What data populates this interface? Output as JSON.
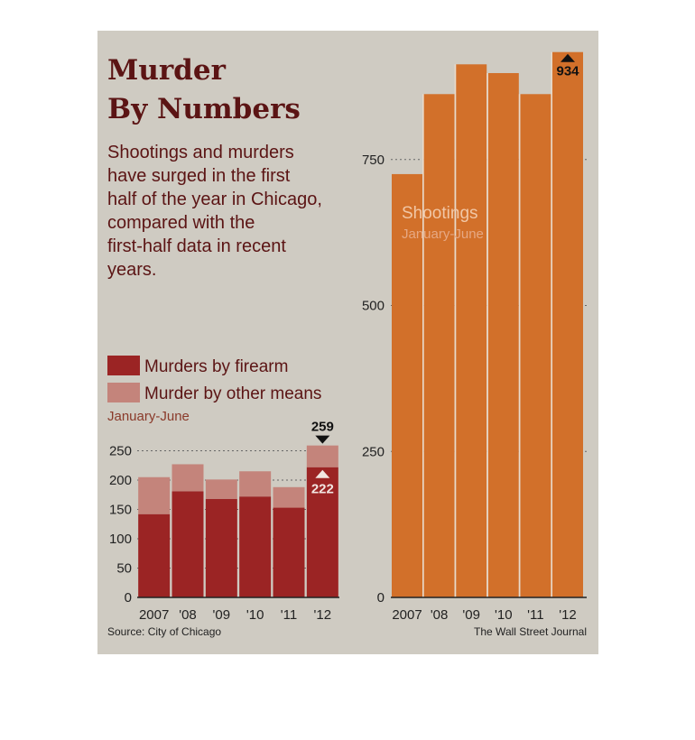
{
  "header": {
    "title_line1": "Murder",
    "title_line2": "By Numbers",
    "description_lines": [
      "Shootings and murders",
      "have surged in the first",
      "half of the year in Chicago,",
      "compared with the",
      "first-half data in recent",
      "years."
    ]
  },
  "colors": {
    "firearm": "#9b2424",
    "other": "#c4847b",
    "shootings": "#d2702a",
    "title": "#5b1414"
  },
  "chart_data": [
    {
      "type": "bar",
      "stacked": true,
      "categories": [
        "2007",
        "'08",
        "'09",
        "'10",
        "'11",
        "'12"
      ],
      "series": [
        {
          "name": "Murders by firearm",
          "values": [
            142,
            181,
            168,
            172,
            153,
            222
          ]
        },
        {
          "name": "Murder by other means",
          "values": [
            63,
            46,
            33,
            43,
            35,
            37
          ]
        }
      ],
      "subtitle": "January-June",
      "ylim": [
        0,
        275
      ],
      "yticks": [
        0,
        50,
        100,
        150,
        200,
        250
      ],
      "grid": true,
      "legend_placement": "top-left",
      "callouts": [
        {
          "category": "'12",
          "label": "259",
          "value": 259
        },
        {
          "category": "'12",
          "label": "222",
          "value": 222
        }
      ]
    },
    {
      "type": "bar",
      "categories": [
        "2007",
        "'08",
        "'09",
        "'10",
        "'11",
        "'12"
      ],
      "series": [
        {
          "name": "Shootings",
          "values": [
            725,
            862,
            913,
            898,
            862,
            934
          ]
        }
      ],
      "subtitle": "January-June",
      "ylim": [
        0,
        934
      ],
      "yticks": [
        0,
        250,
        500,
        750
      ],
      "grid": true,
      "callouts": [
        {
          "category": "'12",
          "label": "934",
          "value": 934
        }
      ]
    }
  ],
  "footer": {
    "source": "Source: City of Chicago",
    "credit": "The Wall Street Journal"
  }
}
